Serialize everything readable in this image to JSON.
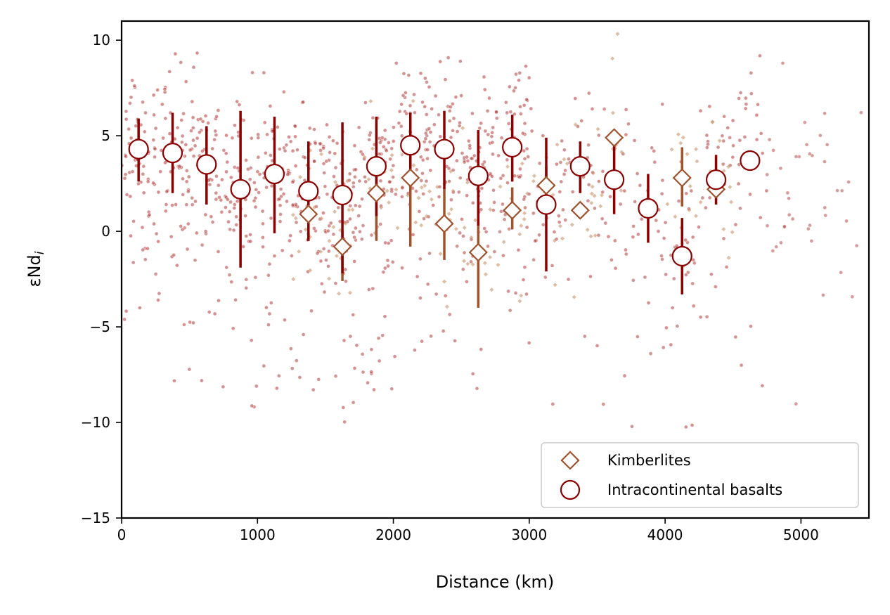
{
  "chart_data": {
    "type": "scatter",
    "xlabel": "Distance (km)",
    "ylabel_main": "εNd",
    "ylabel_sub": "i",
    "xlim": [
      0,
      5500
    ],
    "ylim": [
      -15,
      11
    ],
    "xticks": [
      0,
      1000,
      2000,
      3000,
      4000,
      5000
    ],
    "xtick_labels": [
      "0",
      "1000",
      "2000",
      "3000",
      "4000",
      "5000"
    ],
    "yticks": [
      -15,
      -10,
      -5,
      0,
      5,
      10
    ],
    "ytick_labels": [
      "−15",
      "−10",
      "−5",
      "0",
      "5",
      "10"
    ],
    "grid": false,
    "legend_position": "lower-right",
    "colors": {
      "basalt": "#8b0000",
      "kimberlite": "#a0522d",
      "basalt_points": "#b03a3a",
      "kimberlite_points": "#c9936b"
    },
    "series": [
      {
        "name": "Kimberlites",
        "marker": "diamond",
        "x": [
          1375,
          1625,
          1875,
          2125,
          2375,
          2625,
          2875,
          3125,
          3375,
          3625,
          4125,
          4375
        ],
        "y": [
          0.9,
          -0.8,
          2.0,
          2.8,
          0.4,
          -1.1,
          1.1,
          2.4,
          1.1,
          4.9,
          2.8,
          2.2
        ],
        "err_low": [
          -0.5,
          -2.6,
          -0.5,
          -0.8,
          -1.5,
          -4.0,
          0.1,
          1.3,
          1.1,
          4.9,
          1.3,
          2.2
        ],
        "err_high": [
          2.3,
          0.0,
          3.5,
          4.0,
          2.2,
          0.5,
          2.3,
          3.4,
          1.1,
          4.9,
          4.4,
          2.2
        ]
      },
      {
        "name": "Intracontinental basalts",
        "marker": "circle",
        "x": [
          125,
          375,
          625,
          875,
          1125,
          1375,
          1625,
          1875,
          2125,
          2375,
          2625,
          2875,
          3125,
          3375,
          3625,
          3875,
          4125,
          4375,
          4625
        ],
        "y": [
          4.3,
          4.1,
          3.5,
          2.2,
          3.0,
          2.1,
          1.9,
          3.4,
          4.5,
          4.3,
          2.9,
          4.4,
          1.4,
          3.4,
          2.7,
          1.2,
          -1.3,
          2.7,
          3.7
        ],
        "err_low": [
          2.6,
          2.0,
          1.4,
          -1.9,
          -0.1,
          -0.5,
          -2.2,
          0.8,
          2.8,
          2.2,
          0.3,
          2.6,
          -2.1,
          2.0,
          0.9,
          -0.6,
          -3.3,
          1.4,
          3.7
        ],
        "err_high": [
          5.9,
          6.2,
          5.5,
          6.3,
          6.0,
          4.7,
          5.7,
          6.0,
          6.2,
          6.3,
          5.3,
          6.1,
          4.9,
          4.7,
          4.7,
          3.0,
          0.7,
          4.0,
          3.7
        ]
      }
    ]
  }
}
